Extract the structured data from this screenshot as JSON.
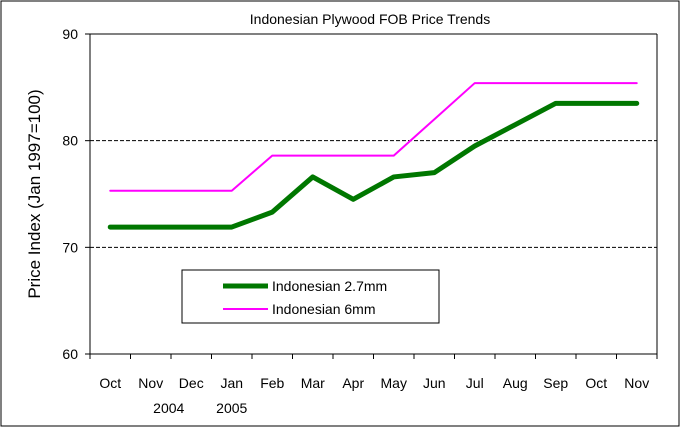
{
  "chart_data": {
    "type": "line",
    "title": "Indonesian Plywood FOB Price Trends",
    "xlabel": "",
    "ylabel": "Price Index (Jan 1997=100)",
    "categories": [
      "Oct",
      "Nov",
      "Dec",
      "Jan",
      "Feb",
      "Mar",
      "Apr",
      "May",
      "Jun",
      "Jul",
      "Aug",
      "Sep",
      "Oct",
      "Nov"
    ],
    "year_labels": [
      {
        "label": "2004",
        "category_index": 1
      },
      {
        "label": "2005",
        "category_index": 3
      }
    ],
    "ylim": [
      60,
      90
    ],
    "yticks": [
      60,
      70,
      80,
      90
    ],
    "grid": "dashed at 70 and 80",
    "legend": "lower-left inside plot",
    "series": [
      {
        "name": "Indonesian 2.7mm",
        "color": "#007700",
        "values": [
          71.9,
          71.9,
          71.9,
          71.9,
          73.3,
          76.6,
          74.5,
          76.6,
          77.0,
          79.5,
          81.5,
          83.5,
          83.5,
          83.5
        ]
      },
      {
        "name": "Indonesian 6mm",
        "color": "#ff00ff",
        "values": [
          75.3,
          75.3,
          75.3,
          75.3,
          78.6,
          78.6,
          78.6,
          78.6,
          82.0,
          85.4,
          85.4,
          85.4,
          85.4,
          85.4
        ]
      }
    ]
  }
}
